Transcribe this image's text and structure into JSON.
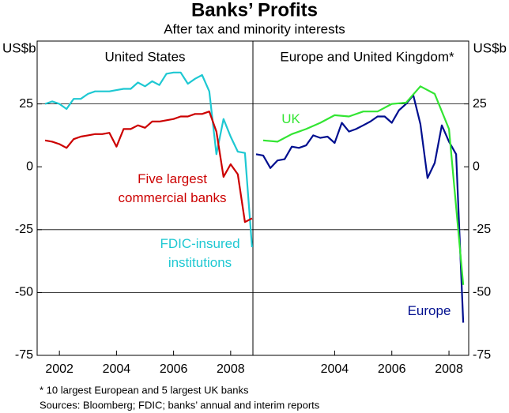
{
  "title": "Banks’ Profits",
  "subtitle": "After tax and minority interests",
  "y_label_left": "US$b",
  "y_label_right": "US$b",
  "footnote": "*   10 largest European and 5 largest UK banks",
  "sources": "Sources: Bloomberg; FDIC; banks’ annual and interim reports",
  "chart_data": [
    {
      "type": "line",
      "title": "United States",
      "x": [
        2001.5,
        2001.75,
        2002,
        2002.25,
        2002.5,
        2002.75,
        2003,
        2003.25,
        2003.5,
        2003.75,
        2004,
        2004.25,
        2004.5,
        2004.75,
        2005,
        2005.25,
        2005.5,
        2005.75,
        2006,
        2006.25,
        2006.5,
        2006.75,
        2007,
        2007.25,
        2007.5,
        2007.75,
        2008,
        2008.25,
        2008.5,
        2008.75
      ],
      "series": [
        {
          "name": "FDIC-insured\ninstitutions",
          "color": "#1ec8d2",
          "values": [
            25,
            26,
            25,
            23,
            27,
            27,
            29,
            30,
            30,
            30,
            30.5,
            31,
            31,
            33.5,
            32,
            34,
            32.5,
            37,
            37.5,
            37.5,
            33,
            35,
            36.5,
            30,
            5,
            19,
            12,
            6,
            5.5,
            -32
          ]
        },
        {
          "name": "Five largest\ncommercial banks",
          "color": "#cc0000",
          "values": [
            10.5,
            10,
            9,
            7.5,
            11,
            12,
            12.5,
            13,
            13,
            13.5,
            8,
            15,
            15,
            16.5,
            15.5,
            18,
            18,
            18.5,
            19,
            20,
            20,
            21,
            21,
            22,
            14,
            -4,
            1,
            -3,
            -22,
            -20.5
          ]
        }
      ],
      "xlim": [
        2001.22,
        2008.78
      ],
      "xticks": [
        2002,
        2004,
        2006,
        2008
      ],
      "ylim": [
        -75,
        50
      ],
      "yticks": [
        -75,
        -50,
        -25,
        0,
        25
      ],
      "grid": true
    },
    {
      "type": "line",
      "title": "Europe and United Kingdom*",
      "x": [
        2001.25,
        2001.5,
        2001.75,
        2002,
        2002.25,
        2002.5,
        2002.75,
        2003,
        2003.25,
        2003.5,
        2003.75,
        2004,
        2004.25,
        2004.5,
        2004.75,
        2005,
        2005.25,
        2005.5,
        2005.75,
        2006,
        2006.25,
        2006.5,
        2006.75,
        2007,
        2007.25,
        2007.5,
        2007.75,
        2008,
        2008.25,
        2008.5
      ],
      "series": [
        {
          "name": "Europe",
          "color": "#000f8f",
          "values": [
            5,
            4.5,
            -0.5,
            2.5,
            3,
            8,
            7.5,
            8.5,
            12.5,
            11.5,
            12,
            9.5,
            17.5,
            14,
            15,
            16.5,
            18,
            20,
            20,
            17.5,
            22.5,
            25,
            28.5,
            17,
            -4.5,
            1.5,
            16.5,
            10,
            5,
            -62
          ]
        },
        {
          "name": "UK",
          "color": "#33e533",
          "x": [
            2001.5,
            2002,
            2002.5,
            2003,
            2003.5,
            2004,
            2004.5,
            2005,
            2005.5,
            2006,
            2006.5,
            2007,
            2007.5,
            2008,
            2008.5
          ],
          "values": [
            10.5,
            10,
            13,
            15,
            17.5,
            20.5,
            20,
            22,
            22,
            25,
            25.5,
            32,
            29,
            15,
            -47
          ]
        }
      ],
      "xlim": [
        2001.14,
        2008.69
      ],
      "xticks": [
        2004,
        2006,
        2008
      ],
      "ylim": [
        -75,
        50
      ],
      "yticks": [
        -75,
        -50,
        -25,
        0,
        25
      ],
      "grid": true
    }
  ]
}
